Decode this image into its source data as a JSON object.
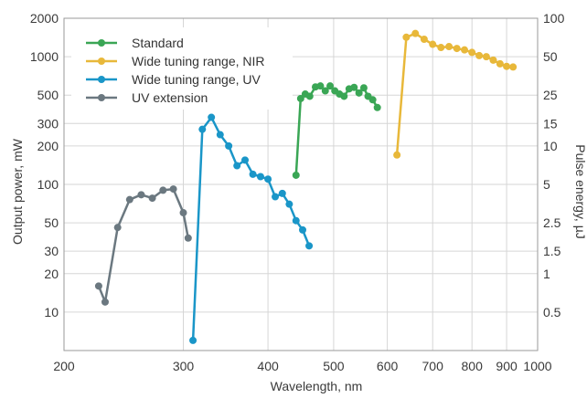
{
  "chart_data": {
    "type": "line",
    "xlabel": "Wavelength, nm",
    "ylabel": "Output power, mW",
    "y2label": "Pulse energy, µJ",
    "xscale": "log",
    "yscale": "log",
    "xlim": [
      200,
      1000
    ],
    "ylim": [
      5,
      2000
    ],
    "grid": true,
    "legend_position": "top-left",
    "x_ticks": [
      200,
      300,
      400,
      500,
      600,
      700,
      800,
      900,
      1000
    ],
    "x_tick_labels": [
      "200",
      "300",
      "400",
      "500",
      "600",
      "700",
      "800",
      "900",
      "1000"
    ],
    "y_ticks": [
      10,
      20,
      30,
      50,
      100,
      200,
      300,
      500,
      1000,
      2000
    ],
    "y_tick_labels": [
      "10",
      "20",
      "30",
      "50",
      "100",
      "200",
      "300",
      "500",
      "1000",
      "2000"
    ],
    "y2_ticks": [
      {
        "value": 10,
        "label": "0.5"
      },
      {
        "value": 20,
        "label": "1"
      },
      {
        "value": 30,
        "label": "1.5"
      },
      {
        "value": 50,
        "label": "2.5"
      },
      {
        "value": 100,
        "label": "5"
      },
      {
        "value": 200,
        "label": "10"
      },
      {
        "value": 300,
        "label": "15"
      },
      {
        "value": 500,
        "label": "25"
      },
      {
        "value": 1000,
        "label": "50"
      },
      {
        "value": 2000,
        "label": "100"
      }
    ],
    "series": [
      {
        "name": "Standard",
        "color": "#3aa655",
        "points": [
          [
            440,
            118
          ],
          [
            447,
            470
          ],
          [
            454,
            510
          ],
          [
            461,
            490
          ],
          [
            470,
            580
          ],
          [
            478,
            590
          ],
          [
            486,
            540
          ],
          [
            494,
            590
          ],
          [
            502,
            540
          ],
          [
            510,
            510
          ],
          [
            518,
            490
          ],
          [
            527,
            560
          ],
          [
            536,
            575
          ],
          [
            545,
            520
          ],
          [
            554,
            570
          ],
          [
            562,
            490
          ],
          [
            571,
            460
          ],
          [
            580,
            400
          ]
        ]
      },
      {
        "name": "Wide tuning range, NIR",
        "color": "#e8b83a",
        "points": [
          [
            620,
            170
          ],
          [
            640,
            1420
          ],
          [
            660,
            1520
          ],
          [
            680,
            1370
          ],
          [
            700,
            1250
          ],
          [
            720,
            1180
          ],
          [
            740,
            1200
          ],
          [
            760,
            1160
          ],
          [
            780,
            1130
          ],
          [
            800,
            1080
          ],
          [
            820,
            1020
          ],
          [
            840,
            1000
          ],
          [
            860,
            940
          ],
          [
            880,
            880
          ],
          [
            900,
            840
          ],
          [
            920,
            830
          ]
        ]
      },
      {
        "name": "Wide tuning range, UV",
        "color": "#1a96c8",
        "points": [
          [
            310,
            6
          ],
          [
            320,
            270
          ],
          [
            330,
            335
          ],
          [
            340,
            245
          ],
          [
            350,
            200
          ],
          [
            360,
            140
          ],
          [
            370,
            155
          ],
          [
            380,
            120
          ],
          [
            390,
            115
          ],
          [
            400,
            110
          ],
          [
            410,
            80
          ],
          [
            420,
            85
          ],
          [
            430,
            70
          ],
          [
            440,
            52
          ],
          [
            450,
            44
          ],
          [
            460,
            33
          ]
        ]
      },
      {
        "name": "UV extension",
        "color": "#6b7880",
        "points": [
          [
            225,
            16
          ],
          [
            230,
            12
          ],
          [
            240,
            46
          ],
          [
            250,
            76
          ],
          [
            260,
            83
          ],
          [
            270,
            78
          ],
          [
            280,
            90
          ],
          [
            290,
            92
          ],
          [
            300,
            60
          ],
          [
            305,
            38
          ]
        ]
      }
    ]
  }
}
